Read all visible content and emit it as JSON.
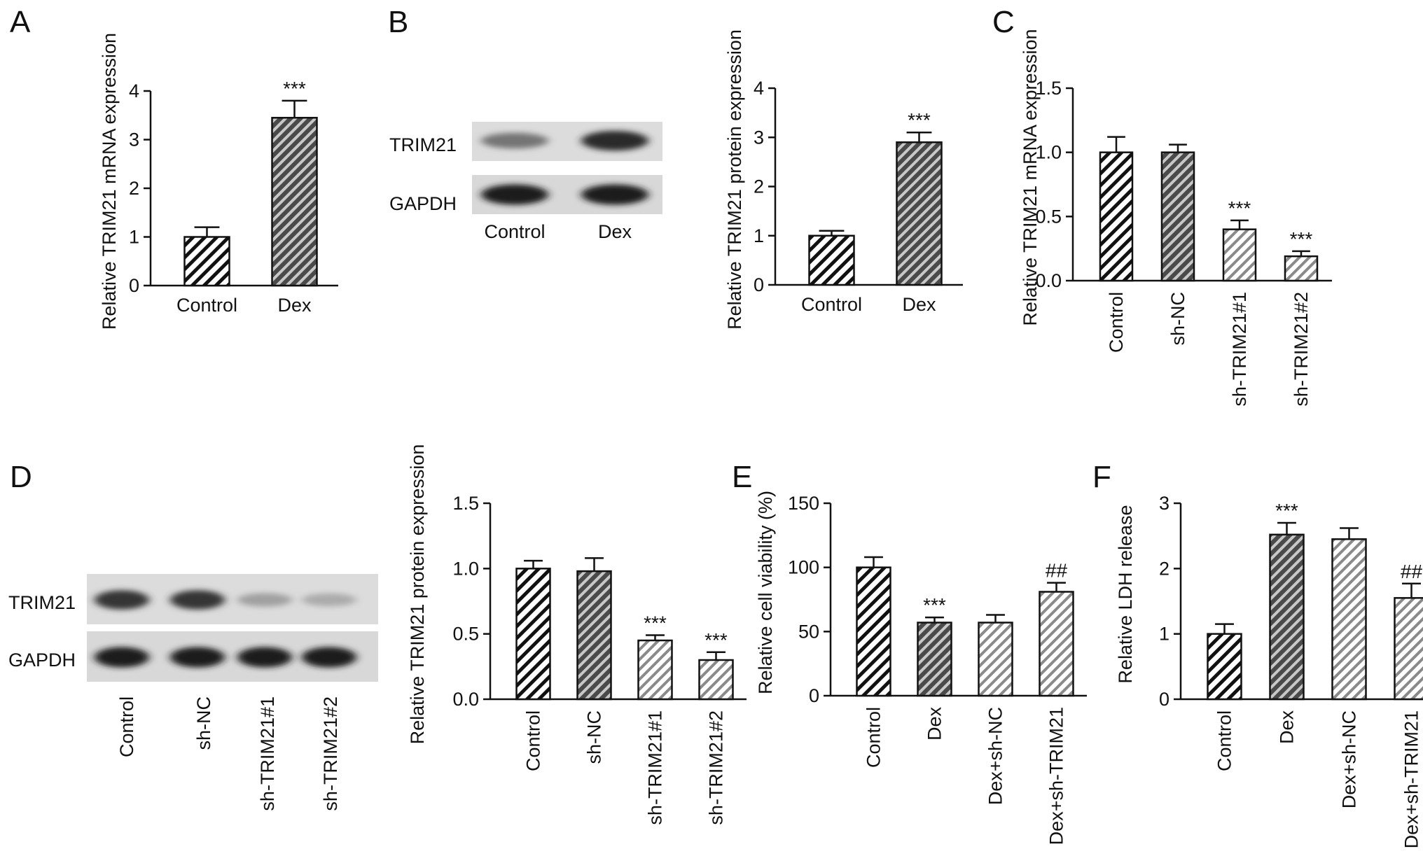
{
  "panels": [
    "A",
    "B",
    "C",
    "D",
    "E",
    "F"
  ],
  "blots": {
    "B": {
      "rows": [
        "TRIM21",
        "GAPDH"
      ],
      "lanes": [
        "Control",
        "Dex"
      ],
      "band_intensity": {
        "TRIM21": [
          0.55,
          0.9
        ],
        "GAPDH": [
          0.95,
          0.95
        ]
      }
    },
    "D": {
      "rows": [
        "TRIM21",
        "GAPDH"
      ],
      "lanes": [
        "Control",
        "sh-NC",
        "sh-TRIM21#1",
        "sh-TRIM21#2"
      ],
      "band_intensity": {
        "TRIM21": [
          0.85,
          0.85,
          0.35,
          0.3
        ],
        "GAPDH": [
          0.95,
          0.95,
          0.95,
          0.95
        ]
      }
    }
  },
  "chart_data": [
    {
      "panel": "A",
      "type": "bar",
      "categories": [
        "Control",
        "Dex"
      ],
      "values": [
        1.0,
        3.45
      ],
      "errors": [
        0.2,
        0.35
      ],
      "significance": [
        "",
        "***"
      ],
      "ylabel": "Relative TRIM21 mRNA expression",
      "ylim": [
        0,
        4
      ],
      "yticks": [
        "0",
        "1",
        "2",
        "3",
        "4"
      ],
      "pattern": [
        "light",
        "dark"
      ]
    },
    {
      "panel": "B",
      "type": "bar",
      "categories": [
        "Control",
        "Dex"
      ],
      "values": [
        1.0,
        2.9
      ],
      "errors": [
        0.1,
        0.2
      ],
      "significance": [
        "",
        "***"
      ],
      "ylabel": "Relative TRIM21 protein expression",
      "ylim": [
        0,
        4
      ],
      "yticks": [
        "0",
        "1",
        "2",
        "3",
        "4"
      ],
      "pattern": [
        "light",
        "dark"
      ]
    },
    {
      "panel": "C",
      "type": "bar",
      "categories": [
        "Control",
        "sh-NC",
        "sh-TRIM21#1",
        "sh-TRIM21#2"
      ],
      "values": [
        1.0,
        1.0,
        0.4,
        0.19
      ],
      "errors": [
        0.12,
        0.06,
        0.07,
        0.04
      ],
      "significance": [
        "",
        "",
        "***",
        "***"
      ],
      "ylabel": "Relative TRIM21 mRNA expression",
      "ylim": [
        0,
        1.5
      ],
      "yticks": [
        "0.0",
        "0.5",
        "1.0",
        "1.5"
      ],
      "pattern": [
        "light",
        "dark",
        "mid",
        "mid"
      ]
    },
    {
      "panel": "D",
      "type": "bar",
      "categories": [
        "Control",
        "sh-NC",
        "sh-TRIM21#1",
        "sh-TRIM21#2"
      ],
      "values": [
        1.0,
        0.98,
        0.45,
        0.3
      ],
      "errors": [
        0.06,
        0.1,
        0.04,
        0.06
      ],
      "significance": [
        "",
        "",
        "***",
        "***"
      ],
      "ylabel": "Relative TRIM21 protein expression",
      "ylim": [
        0,
        1.5
      ],
      "yticks": [
        "0.0",
        "0.5",
        "1.0",
        "1.5"
      ],
      "pattern": [
        "light",
        "dark",
        "mid",
        "mid"
      ]
    },
    {
      "panel": "E",
      "type": "bar",
      "categories": [
        "Control",
        "Dex",
        "Dex+sh-NC",
        "Dex+sh-TRIM21"
      ],
      "values": [
        100,
        57,
        57,
        81
      ],
      "errors": [
        8,
        4,
        6,
        7
      ],
      "significance": [
        "",
        "***",
        "",
        "##"
      ],
      "ylabel": "Relative cell viability (%)",
      "ylim": [
        0,
        150
      ],
      "yticks": [
        "0",
        "50",
        "100",
        "150"
      ],
      "pattern": [
        "light",
        "dark",
        "mid",
        "mid"
      ]
    },
    {
      "panel": "F",
      "type": "bar",
      "categories": [
        "Control",
        "Dex",
        "Dex+sh-NC",
        "Dex+sh-TRIM21"
      ],
      "values": [
        1.0,
        2.52,
        2.45,
        1.55
      ],
      "errors": [
        0.15,
        0.18,
        0.17,
        0.22
      ],
      "significance": [
        "",
        "***",
        "",
        "##"
      ],
      "ylabel": "Relative LDH release",
      "ylim": [
        0,
        3
      ],
      "yticks": [
        "0",
        "1",
        "2",
        "3"
      ],
      "pattern": [
        "light",
        "dark",
        "mid",
        "mid"
      ]
    }
  ]
}
